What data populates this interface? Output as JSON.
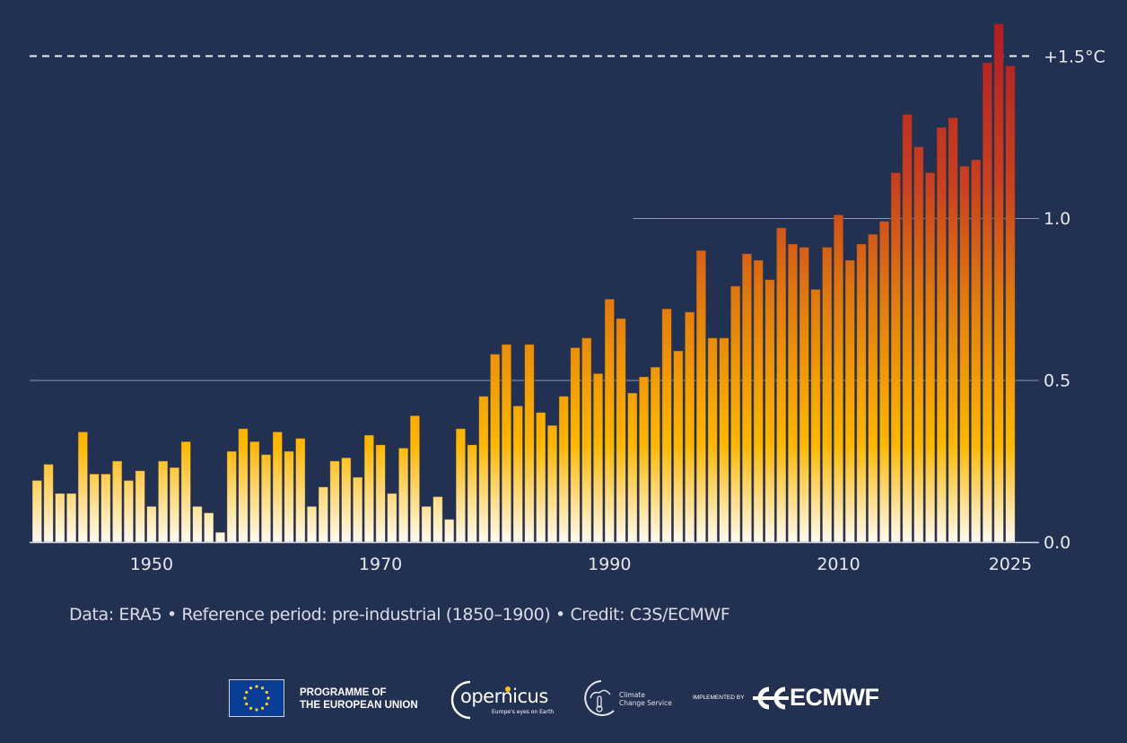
{
  "chart_data": {
    "type": "bar",
    "title": "",
    "xlabel": "",
    "ylabel": "",
    "unit": "°C",
    "ylim": [
      0,
      1.65
    ],
    "grid": true,
    "x": [
      1940,
      1941,
      1942,
      1943,
      1944,
      1945,
      1946,
      1947,
      1948,
      1949,
      1950,
      1951,
      1952,
      1953,
      1954,
      1955,
      1956,
      1957,
      1958,
      1959,
      1960,
      1961,
      1962,
      1963,
      1964,
      1965,
      1966,
      1967,
      1968,
      1969,
      1970,
      1971,
      1972,
      1973,
      1974,
      1975,
      1976,
      1977,
      1978,
      1979,
      1980,
      1981,
      1982,
      1983,
      1984,
      1985,
      1986,
      1987,
      1988,
      1989,
      1990,
      1991,
      1992,
      1993,
      1994,
      1995,
      1996,
      1997,
      1998,
      1999,
      2000,
      2001,
      2002,
      2003,
      2004,
      2005,
      2006,
      2007,
      2008,
      2009,
      2010,
      2011,
      2012,
      2013,
      2014,
      2015,
      2016,
      2017,
      2018,
      2019,
      2020,
      2021,
      2022,
      2023,
      2024,
      2025
    ],
    "values": [
      0.19,
      0.24,
      0.15,
      0.15,
      0.34,
      0.21,
      0.21,
      0.25,
      0.19,
      0.22,
      0.11,
      0.25,
      0.23,
      0.31,
      0.11,
      0.09,
      0.03,
      0.28,
      0.35,
      0.31,
      0.27,
      0.34,
      0.28,
      0.32,
      0.11,
      0.17,
      0.25,
      0.26,
      0.2,
      0.33,
      0.3,
      0.15,
      0.29,
      0.39,
      0.11,
      0.14,
      0.07,
      0.35,
      0.3,
      0.45,
      0.58,
      0.61,
      0.42,
      0.61,
      0.4,
      0.36,
      0.45,
      0.6,
      0.63,
      0.52,
      0.75,
      0.69,
      0.46,
      0.51,
      0.54,
      0.72,
      0.59,
      0.71,
      0.9,
      0.63,
      0.63,
      0.79,
      0.89,
      0.87,
      0.81,
      0.97,
      0.92,
      0.91,
      0.78,
      0.91,
      1.01,
      0.87,
      0.92,
      0.95,
      0.99,
      1.14,
      1.32,
      1.22,
      1.14,
      1.28,
      1.31,
      1.16,
      1.18,
      1.48,
      1.6,
      1.47
    ],
    "x_ticks": [
      {
        "year": 1950,
        "label": "1950"
      },
      {
        "year": 1970,
        "label": "1970"
      },
      {
        "year": 1990,
        "label": "1990"
      },
      {
        "year": 2010,
        "label": "2010"
      },
      {
        "year": 2025,
        "label": "2025"
      }
    ],
    "y_ticks": [
      {
        "value": 0.0,
        "label": "0.0"
      },
      {
        "value": 0.5,
        "label": "0.5"
      },
      {
        "value": 1.0,
        "label": "1.0"
      }
    ],
    "threshold": {
      "value": 1.5,
      "label": "+1.5°C",
      "style": "dashed"
    },
    "gridline_1_0_starts_year": 1993,
    "color_scale": [
      {
        "value": 0.0,
        "color": "#fffaf0"
      },
      {
        "value": 0.3,
        "color": "#ffb703"
      },
      {
        "value": 0.75,
        "color": "#e07a10"
      },
      {
        "value": 1.1,
        "color": "#c9411f"
      },
      {
        "value": 1.6,
        "color": "#b01d27"
      }
    ]
  },
  "colors": {
    "background": "#223152",
    "text": "#e6e8ee",
    "gridline": "#8e97ab",
    "threshold_line": "#e9ecf2"
  },
  "footer": {
    "credit": "Data: ERA5 • Reference period: pre-industrial (1850–1900) • Credit: C3S/ECMWF",
    "eu_line1": "PROGRAMME OF",
    "eu_line2": "THE EUROPEAN UNION",
    "copernicus_name": "opernicus",
    "copernicus_tagline": "Europe's eyes on Earth",
    "c3s_line1": "Climate",
    "c3s_line2": "Change Service",
    "implemented_by": "IMPLEMENTED BY",
    "ecmwf": "ECMWF"
  }
}
